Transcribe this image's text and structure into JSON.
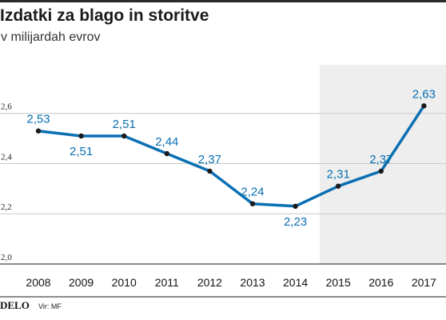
{
  "header": {
    "title": "Izdatki za blago in storitve",
    "subtitle": "v milijardah evrov"
  },
  "footer": {
    "brand": "DELO",
    "source": "Vir: MF"
  },
  "colors": {
    "line": "#0a6fb3",
    "marker": "#1a1a1a",
    "label": "#0a6fb3",
    "highlight": "#eeeeee",
    "grid": "#c8c8c8",
    "topbar": "#2b2b2b"
  },
  "chart_data": {
    "type": "line",
    "title": "Izdatki za blago in storitve",
    "subtitle": "v milijardah evrov",
    "categories": [
      "2008",
      "2009",
      "2010",
      "2011",
      "2012",
      "2013",
      "2014",
      "2015",
      "2016",
      "2017"
    ],
    "values": [
      2.53,
      2.51,
      2.51,
      2.44,
      2.37,
      2.24,
      2.23,
      2.31,
      2.37,
      2.63
    ],
    "value_labels": [
      "2,53",
      "2,51",
      "2,51",
      "2,44",
      "2,37",
      "2,24",
      "2,23",
      "2,31",
      "2,37",
      "2,63"
    ],
    "yticks": [
      2.0,
      2.2,
      2.4,
      2.6
    ],
    "ytick_labels": [
      "2,0",
      "2,2",
      "2,4",
      "2,6"
    ],
    "ylim": [
      2.0,
      2.8
    ],
    "highlight_categories": [
      "2015",
      "2016",
      "2017"
    ],
    "grid": true,
    "legend": "none"
  }
}
